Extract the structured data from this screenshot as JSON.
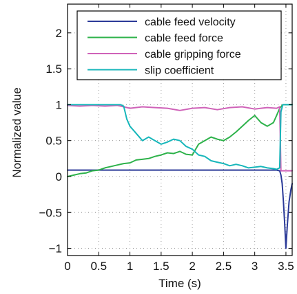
{
  "chart_data": {
    "type": "line",
    "title": "",
    "xlabel": "Time (s)",
    "ylabel": "Normalized value",
    "xlim": [
      0,
      3.6
    ],
    "ylim": [
      -1.1,
      2.4
    ],
    "xticks": [
      0,
      0.5,
      1,
      1.5,
      2,
      2.5,
      3,
      3.5
    ],
    "xtick_labels": [
      "0",
      "0.5",
      "1",
      "1.5",
      "2",
      "2.5",
      "3",
      "3.5"
    ],
    "yticks": [
      -1,
      -0.5,
      0,
      0.5,
      1,
      1.5,
      2
    ],
    "ytick_labels": [
      "−1",
      "−0.5",
      "0",
      "0.5",
      "1",
      "1.5",
      "2"
    ],
    "grid": true,
    "legend_position": "top-right",
    "series": [
      {
        "name": "cable feed velocity",
        "color": "#2b3a98",
        "x": [
          0,
          0.5,
          1.0,
          1.5,
          2.0,
          2.5,
          3.0,
          3.35,
          3.4,
          3.42,
          3.44,
          3.46,
          3.48,
          3.5,
          3.52,
          3.55,
          3.58,
          3.6
        ],
        "y": [
          0.09,
          0.09,
          0.09,
          0.09,
          0.09,
          0.09,
          0.09,
          0.09,
          0.08,
          0.02,
          -0.1,
          -0.35,
          -0.65,
          -1.0,
          -0.7,
          -0.35,
          -0.18,
          -0.1
        ]
      },
      {
        "name": "cable feed force",
        "color": "#2db24a",
        "x": [
          0,
          0.1,
          0.2,
          0.3,
          0.4,
          0.5,
          0.6,
          0.7,
          0.8,
          0.9,
          1.0,
          1.1,
          1.2,
          1.3,
          1.4,
          1.5,
          1.6,
          1.7,
          1.8,
          1.9,
          2.0,
          2.1,
          2.2,
          2.3,
          2.4,
          2.5,
          2.6,
          2.7,
          2.8,
          2.9,
          3.0,
          3.1,
          3.2,
          3.3,
          3.35,
          3.4,
          3.45,
          3.6
        ],
        "y": [
          0.0,
          0.02,
          0.04,
          0.05,
          0.08,
          0.09,
          0.12,
          0.14,
          0.16,
          0.18,
          0.19,
          0.23,
          0.24,
          0.25,
          0.28,
          0.3,
          0.33,
          0.32,
          0.35,
          0.31,
          0.3,
          0.45,
          0.5,
          0.55,
          0.52,
          0.5,
          0.55,
          0.62,
          0.7,
          0.78,
          0.85,
          0.75,
          0.7,
          0.75,
          0.85,
          0.95,
          1.0,
          1.0
        ]
      },
      {
        "name": "cable gripping force",
        "color": "#cf62b8",
        "x": [
          0,
          0.2,
          0.4,
          0.6,
          0.8,
          1.0,
          1.2,
          1.4,
          1.6,
          1.8,
          2.0,
          2.2,
          2.4,
          2.6,
          2.8,
          3.0,
          3.2,
          3.35,
          3.4,
          3.42,
          3.6
        ],
        "y": [
          0.99,
          0.98,
          0.99,
          0.98,
          0.99,
          0.95,
          0.97,
          0.96,
          0.95,
          0.92,
          0.95,
          0.96,
          0.93,
          0.96,
          0.97,
          0.94,
          0.96,
          0.95,
          0.97,
          0.08,
          0.08
        ]
      },
      {
        "name": "slip coefficient",
        "color": "#16b6ba",
        "x": [
          0,
          0.3,
          0.6,
          0.85,
          0.9,
          0.95,
          1.0,
          1.1,
          1.2,
          1.3,
          1.4,
          1.5,
          1.6,
          1.7,
          1.8,
          1.9,
          2.0,
          2.1,
          2.2,
          2.3,
          2.4,
          2.5,
          2.6,
          2.7,
          2.8,
          2.9,
          3.0,
          3.1,
          3.2,
          3.3,
          3.35,
          3.4,
          3.42,
          3.45,
          3.6
        ],
        "y": [
          1.0,
          1.0,
          1.0,
          1.0,
          0.98,
          0.8,
          0.7,
          0.6,
          0.5,
          0.55,
          0.5,
          0.45,
          0.48,
          0.52,
          0.5,
          0.42,
          0.38,
          0.3,
          0.28,
          0.22,
          0.2,
          0.18,
          0.15,
          0.17,
          0.15,
          0.12,
          0.13,
          0.14,
          0.12,
          0.11,
          0.1,
          0.12,
          0.9,
          1.0,
          1.0
        ]
      }
    ]
  }
}
